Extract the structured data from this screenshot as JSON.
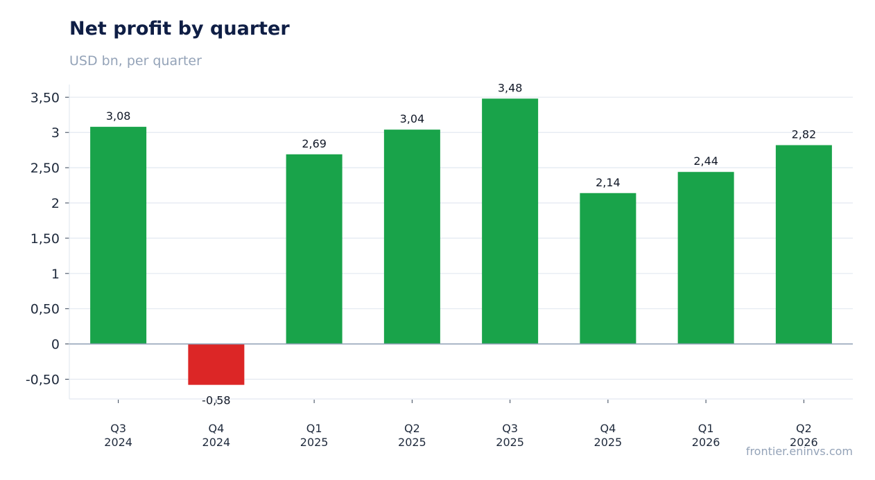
{
  "chart_data": {
    "type": "bar",
    "title": "Net profit by quarter",
    "subtitle": "USD bn, per quarter",
    "categories": [
      [
        "Q3",
        "2024"
      ],
      [
        "Q4",
        "2024"
      ],
      [
        "Q1",
        "2025"
      ],
      [
        "Q2",
        "2025"
      ],
      [
        "Q3",
        "2025"
      ],
      [
        "Q4",
        "2025"
      ],
      [
        "Q1",
        "2026"
      ],
      [
        "Q2",
        "2026"
      ]
    ],
    "values": [
      3.08,
      -0.58,
      2.69,
      3.04,
      3.48,
      2.14,
      2.44,
      2.82
    ],
    "value_labels": [
      "3,08",
      "-0,58",
      "2,69",
      "3,04",
      "3,48",
      "2,14",
      "2,44",
      "2,82"
    ],
    "yticks": [
      -0.5,
      0,
      0.5,
      1,
      1.5,
      2,
      2.5,
      3,
      3.5
    ],
    "ytick_labels": [
      "-0,50",
      "0",
      "0,50",
      "1",
      "1,50",
      "2",
      "2,50",
      "3",
      "3,50"
    ],
    "ylim": [
      -0.78,
      3.68
    ],
    "grid": true,
    "legend": "none",
    "colors": {
      "positive": "#19a34a",
      "negative": "#dc2626",
      "grid": "#e2e8f0",
      "zero_line": "#94a3b8"
    }
  },
  "footer": {
    "source": "frontier.eninvs.com"
  }
}
